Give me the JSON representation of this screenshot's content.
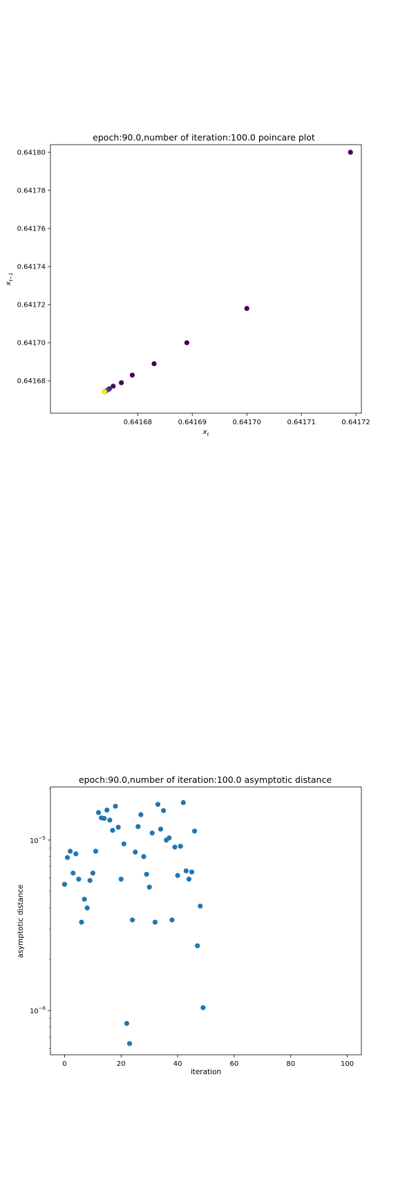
{
  "chart_data": [
    {
      "type": "scatter",
      "title": "epoch:90.0,number of iteration:100.0 poincare plot",
      "xlabel": "x",
      "xlabel_sub": "t",
      "ylabel": "x",
      "ylabel_sub": "t−1",
      "xlim": [
        0.641664,
        0.641721
      ],
      "ylim": [
        0.641663,
        0.641804
      ],
      "xticks": [
        0.64168,
        0.64169,
        0.6417,
        0.64171,
        0.64172
      ],
      "xtick_labels": [
        "0.64168",
        "0.64169",
        "0.64170",
        "0.64171",
        "0.64172"
      ],
      "yticks": [
        0.64168,
        0.6417,
        0.64172,
        0.64174,
        0.64176,
        0.64178,
        0.6418
      ],
      "ytick_labels": [
        "0.64168",
        "0.64170",
        "0.64172",
        "0.64174",
        "0.64176",
        "0.64178",
        "0.64180"
      ],
      "colormap": "viridis",
      "colors": {
        "first": "#440154",
        "last": "#fde725"
      },
      "points": [
        {
          "x": 0.641719,
          "y": 0.6418,
          "c": 0
        },
        {
          "x": 0.6417,
          "y": 0.641718,
          "c": 0
        },
        {
          "x": 0.641689,
          "y": 0.6417,
          "c": 0
        },
        {
          "x": 0.641683,
          "y": 0.641689,
          "c": 0
        },
        {
          "x": 0.641679,
          "y": 0.641683,
          "c": 0
        },
        {
          "x": 0.641677,
          "y": 0.641679,
          "c": 0.02
        },
        {
          "x": 0.6416755,
          "y": 0.6416772,
          "c": 0.05
        },
        {
          "x": 0.6416748,
          "y": 0.6416758,
          "c": 0.1
        },
        {
          "x": 0.6416745,
          "y": 0.6416752,
          "c": 0.2
        },
        {
          "x": 0.6416741,
          "y": 0.6416746,
          "c": 0.35
        },
        {
          "x": 0.6416739,
          "y": 0.6416743,
          "c": 1
        }
      ]
    },
    {
      "type": "scatter",
      "title": "epoch:90.0,number of iteration:100.0 asymptotic distance",
      "xlabel": "iteration",
      "ylabel": "asymptotic distance",
      "yscale": "log",
      "xlim": [
        -5,
        105
      ],
      "ylim": [
        5.5e-07,
        2.05e-05
      ],
      "xticks": [
        0,
        20,
        40,
        60,
        80,
        100
      ],
      "xtick_labels": [
        "0",
        "20",
        "40",
        "60",
        "80",
        "100"
      ],
      "yticks_major": [
        1e-06,
        1e-05
      ],
      "ytick_major_base": "10",
      "ytick_major_exponents": [
        "−6",
        "−5"
      ],
      "yticks_minor": [
        6e-07,
        7e-07,
        8e-07,
        9e-07,
        2e-06,
        3e-06,
        4e-06,
        5e-06,
        6e-06,
        7e-06,
        8e-06,
        9e-06,
        2e-05
      ],
      "color": "#1f77b4",
      "x": [
        0,
        1,
        2,
        3,
        4,
        5,
        6,
        7,
        8,
        9,
        10,
        11,
        12,
        13,
        14,
        15,
        16,
        17,
        18,
        19,
        20,
        21,
        22,
        23,
        24,
        25,
        26,
        27,
        28,
        29,
        30,
        31,
        32,
        33,
        34,
        35,
        36,
        37,
        38,
        39,
        40,
        41,
        42,
        43,
        44,
        45,
        46,
        47,
        48,
        49
      ],
      "y": [
        5.5e-06,
        7.9e-06,
        8.6e-06,
        6.4e-06,
        8.3e-06,
        5.9e-06,
        3.3e-06,
        4.5e-06,
        4e-06,
        5.8e-06,
        6.4e-06,
        8.6e-06,
        1.45e-05,
        1.35e-05,
        1.34e-05,
        1.5e-05,
        1.31e-05,
        1.14e-05,
        1.58e-05,
        1.19e-05,
        5.9e-06,
        9.5e-06,
        8.4e-07,
        6.4e-07,
        3.4e-06,
        8.5e-06,
        1.2e-05,
        1.41e-05,
        8e-06,
        6.3e-06,
        5.3e-06,
        1.1e-05,
        3.3e-06,
        1.62e-05,
        1.16e-05,
        1.49e-05,
        1e-05,
        1.03e-05,
        3.4e-06,
        9.1e-06,
        6.2e-06,
        9.2e-06,
        1.66e-05,
        6.6e-06,
        5.9e-06,
        6.5e-06,
        1.13e-05,
        2.4e-06,
        4.1e-06,
        1.04e-06
      ]
    }
  ]
}
